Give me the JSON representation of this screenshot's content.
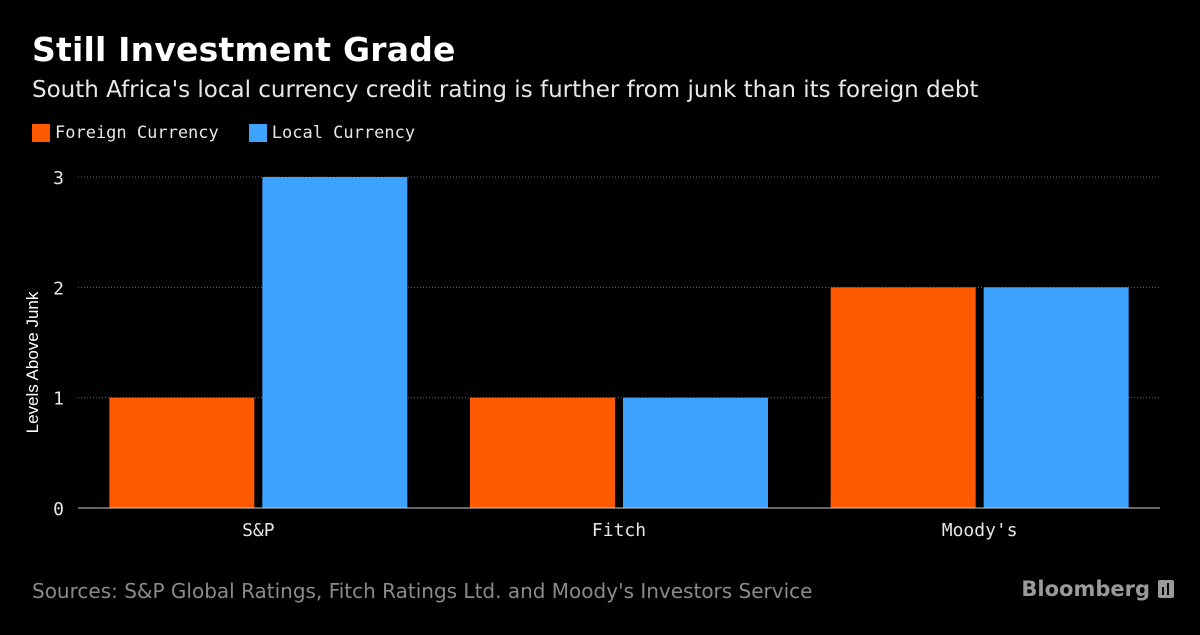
{
  "header": {
    "title": "Still Investment Grade",
    "subtitle": "South Africa's local currency credit rating is further from junk than its foreign debt"
  },
  "legend": [
    {
      "label": "Foreign Currency",
      "color": "#ff5a00"
    },
    {
      "label": "Local Currency",
      "color": "#3ea2ff"
    }
  ],
  "footer": {
    "source": "Sources: S&P Global Ratings, Fitch Ratings Ltd. and Moody's Investors Service",
    "brand": "Bloomberg"
  },
  "chart_data": {
    "type": "bar",
    "title": "Still Investment Grade",
    "xlabel": "",
    "ylabel": "Levels Above Junk",
    "ylim": [
      0,
      3
    ],
    "yticks": [
      0,
      1,
      2,
      3
    ],
    "grid": true,
    "legend_position": "top-left",
    "categories": [
      "S&P",
      "Fitch",
      "Moody's"
    ],
    "series": [
      {
        "name": "Foreign Currency",
        "color": "#ff5a00",
        "values": [
          1,
          1,
          2
        ]
      },
      {
        "name": "Local Currency",
        "color": "#3ea2ff",
        "values": [
          3,
          1,
          2
        ]
      }
    ]
  }
}
